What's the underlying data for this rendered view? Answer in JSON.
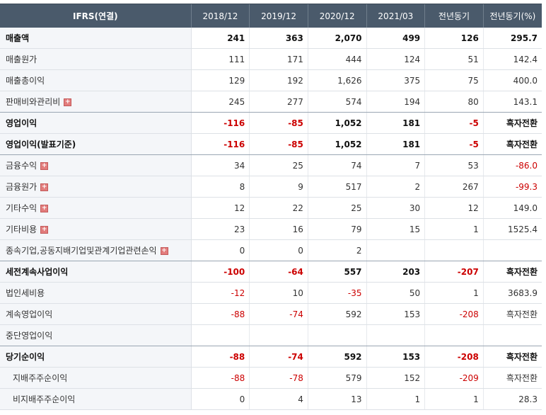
{
  "header": {
    "label": "IFRS(연결)",
    "cols": [
      "2018/12",
      "2019/12",
      "2020/12",
      "2021/03",
      "전년동기",
      "전년동기(%)"
    ]
  },
  "rows": [
    {
      "label": "매출액",
      "bold": true,
      "plus": false,
      "v": [
        "241",
        "363",
        "2,070",
        "499",
        "126",
        "295.7"
      ]
    },
    {
      "label": "매출원가",
      "bold": false,
      "plus": false,
      "v": [
        "111",
        "171",
        "444",
        "124",
        "51",
        "142.4"
      ]
    },
    {
      "label": "매출총이익",
      "bold": false,
      "plus": false,
      "v": [
        "129",
        "192",
        "1,626",
        "375",
        "75",
        "400.0"
      ]
    },
    {
      "label": "판매비와관리비",
      "bold": false,
      "plus": true,
      "v": [
        "245",
        "277",
        "574",
        "194",
        "80",
        "143.1"
      ]
    },
    {
      "label": "영업이익",
      "bold": true,
      "plus": false,
      "v": [
        "-116",
        "-85",
        "1,052",
        "181",
        "-5",
        "흑자전환"
      ]
    },
    {
      "label": "영업이익(발표기준)",
      "bold": true,
      "plus": false,
      "v": [
        "-116",
        "-85",
        "1,052",
        "181",
        "-5",
        "흑자전환"
      ]
    },
    {
      "label": "금융수익",
      "bold": false,
      "plus": true,
      "v": [
        "34",
        "25",
        "74",
        "7",
        "53",
        "-86.0"
      ]
    },
    {
      "label": "금융원가",
      "bold": false,
      "plus": true,
      "v": [
        "8",
        "9",
        "517",
        "2",
        "267",
        "-99.3"
      ]
    },
    {
      "label": "기타수익",
      "bold": false,
      "plus": true,
      "v": [
        "12",
        "22",
        "25",
        "30",
        "12",
        "149.0"
      ]
    },
    {
      "label": "기타비용",
      "bold": false,
      "plus": true,
      "v": [
        "23",
        "16",
        "79",
        "15",
        "1",
        "1525.4"
      ]
    },
    {
      "label": "종속기업,공동지배기업및관계기업관련손익",
      "bold": false,
      "plus": true,
      "v": [
        "0",
        "0",
        "2",
        "",
        "",
        ""
      ]
    },
    {
      "label": "세전계속사업이익",
      "bold": true,
      "plus": false,
      "v": [
        "-100",
        "-64",
        "557",
        "203",
        "-207",
        "흑자전환"
      ]
    },
    {
      "label": "법인세비용",
      "bold": false,
      "plus": false,
      "v": [
        "-12",
        "10",
        "-35",
        "50",
        "1",
        "3683.9"
      ]
    },
    {
      "label": "계속영업이익",
      "bold": false,
      "plus": false,
      "v": [
        "-88",
        "-74",
        "592",
        "153",
        "-208",
        "흑자전환"
      ]
    },
    {
      "label": "중단영업이익",
      "bold": false,
      "plus": false,
      "v": [
        "",
        "",
        "",
        "",
        "",
        ""
      ]
    },
    {
      "label": "당기순이익",
      "bold": true,
      "plus": false,
      "v": [
        "-88",
        "-74",
        "592",
        "153",
        "-208",
        "흑자전환"
      ]
    },
    {
      "label": "지배주주순이익",
      "bold": false,
      "plus": false,
      "sub": true,
      "v": [
        "-88",
        "-78",
        "579",
        "152",
        "-209",
        "흑자전환"
      ]
    },
    {
      "label": "비지배주주순이익",
      "bold": false,
      "plus": false,
      "sub": true,
      "v": [
        "0",
        "4",
        "13",
        "1",
        "1",
        "28.3"
      ]
    }
  ],
  "colors": {
    "header_bg": "#4a5a6b",
    "negative": "#cc0000",
    "label_bg": "#f4f6f9"
  },
  "icons": {
    "expand": "plus-expand-icon"
  }
}
